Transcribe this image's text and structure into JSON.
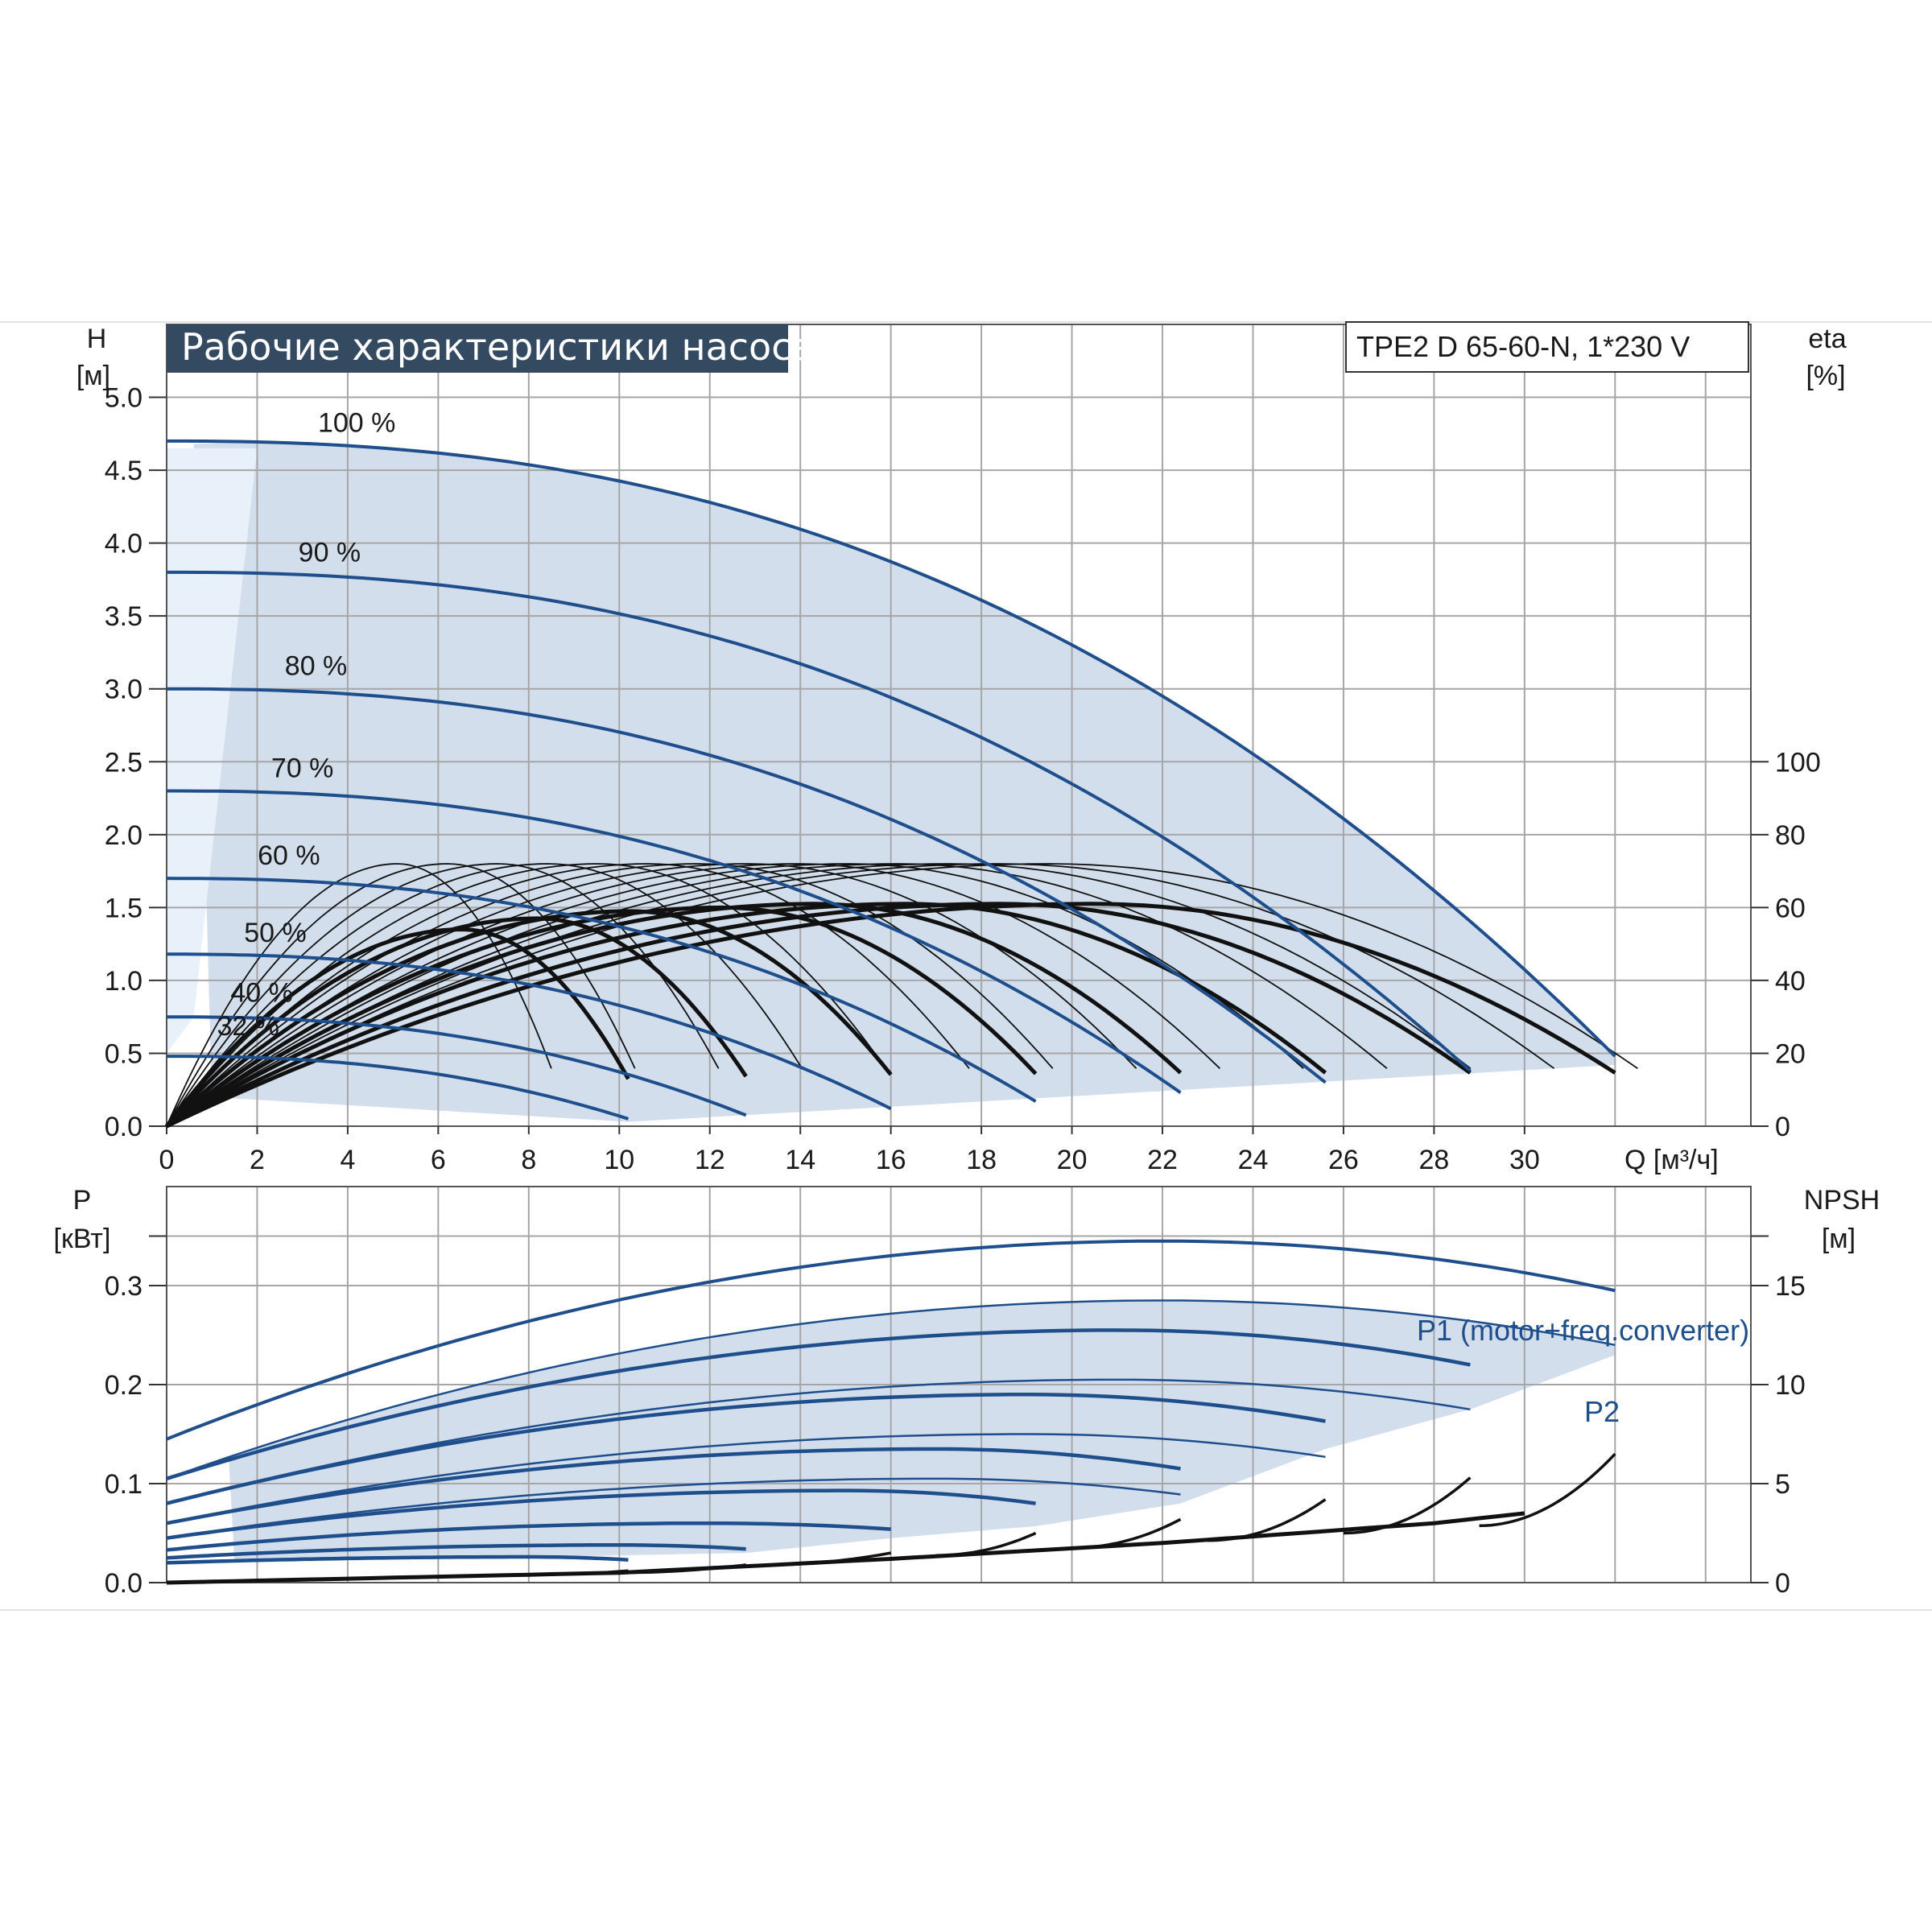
{
  "chart_data": [
    {
      "type": "line",
      "title": "Рабочие характеристики насоса",
      "model": "TPE2 D 65-60-N, 1*230 V",
      "ylabel": "H",
      "ylabel_unit": "[м]",
      "y2label": "eta",
      "y2label_unit": "[%]",
      "xlabel": "Q [м³/ч]",
      "xlim": [
        0,
        35
      ],
      "ylim": [
        0,
        5.5
      ],
      "y2lim": [
        0,
        100
      ],
      "x_ticks": [
        "0",
        "2",
        "4",
        "6",
        "8",
        "10",
        "12",
        "14",
        "16",
        "18",
        "20",
        "22",
        "24",
        "26",
        "28",
        "30"
      ],
      "y_ticks": [
        "0.0",
        "0.5",
        "1.0",
        "1.5",
        "2.0",
        "2.5",
        "3.0",
        "3.5",
        "4.0",
        "4.5",
        "5.0"
      ],
      "y2_ticks": [
        "0",
        "20",
        "40",
        "60",
        "80",
        "100"
      ],
      "grid": true,
      "head_curves": [
        {
          "label": "100 %",
          "shutoff": 4.7,
          "qmax": 32.0,
          "hend": 0.48,
          "label_q": 4.2,
          "label_h": 4.72
        },
        {
          "label": "90 %",
          "shutoff": 3.8,
          "qmax": 28.8,
          "hend": 0.38,
          "label_q": 3.6,
          "label_h": 3.83
        },
        {
          "label": "80 %",
          "shutoff": 3.0,
          "qmax": 25.6,
          "hend": 0.3,
          "label_q": 3.3,
          "label_h": 3.05
        },
        {
          "label": "70 %",
          "shutoff": 2.3,
          "qmax": 22.4,
          "hend": 0.23,
          "label_q": 3.0,
          "label_h": 2.35
        },
        {
          "label": "60 %",
          "shutoff": 1.7,
          "qmax": 19.2,
          "hend": 0.17,
          "label_q": 2.7,
          "label_h": 1.75
        },
        {
          "label": "50 %",
          "shutoff": 1.18,
          "qmax": 16.0,
          "hend": 0.12,
          "label_q": 2.4,
          "label_h": 1.22
        },
        {
          "label": "40 %",
          "shutoff": 0.75,
          "qmax": 12.8,
          "hend": 0.075,
          "label_q": 2.1,
          "label_h": 0.81
        },
        {
          "label": "32 %",
          "shutoff": 0.48,
          "qmax": 10.2,
          "hend": 0.05,
          "label_q": 1.8,
          "label_h": 0.58
        }
      ],
      "efficiency_curves_percent": [
        {
          "qmax": 32.0,
          "peak": 61
        },
        {
          "qmax": 28.8,
          "peak": 61
        },
        {
          "qmax": 25.6,
          "peak": 61
        },
        {
          "qmax": 22.4,
          "peak": 61
        },
        {
          "qmax": 19.2,
          "peak": 60
        },
        {
          "qmax": 16.0,
          "peak": 59
        },
        {
          "qmax": 12.8,
          "peak": 57
        },
        {
          "qmax": 10.2,
          "peak": 54
        }
      ]
    },
    {
      "type": "line",
      "ylabel": "P",
      "ylabel_unit": "[кВт]",
      "y2label": "NPSH",
      "y2label_unit": "[м]",
      "xlim": [
        0,
        35
      ],
      "ylim": [
        0,
        0.4
      ],
      "y2lim": [
        0,
        20
      ],
      "y_ticks": [
        "0.0",
        "0.1",
        "0.2",
        "0.3"
      ],
      "y2_ticks": [
        "0",
        "5",
        "10",
        "15"
      ],
      "grid": true,
      "series_labels": [
        "P1 (motor+freq.converter)",
        "P2"
      ],
      "p1_curves": [
        {
          "start": 0.145,
          "qpeak": 22,
          "peak": 0.345,
          "qmax": 32.0,
          "end": 0.295
        },
        {
          "start": 0.105,
          "qpeak": 21,
          "peak": 0.255,
          "qmax": 28.8,
          "end": 0.22
        },
        {
          "start": 0.08,
          "qpeak": 19,
          "peak": 0.19,
          "qmax": 25.6,
          "end": 0.163
        },
        {
          "start": 0.06,
          "qpeak": 17,
          "peak": 0.135,
          "qmax": 22.4,
          "end": 0.115
        },
        {
          "start": 0.045,
          "qpeak": 15,
          "peak": 0.093,
          "qmax": 19.2,
          "end": 0.08
        },
        {
          "start": 0.033,
          "qpeak": 12,
          "peak": 0.06,
          "qmax": 16.0,
          "end": 0.054
        },
        {
          "start": 0.025,
          "qpeak": 10,
          "peak": 0.038,
          "qmax": 12.8,
          "end": 0.034
        },
        {
          "start": 0.02,
          "qpeak": 8,
          "peak": 0.026,
          "qmax": 10.2,
          "end": 0.023
        }
      ],
      "p2_curves": [
        {
          "start": 0.105,
          "qpeak": 22,
          "peak": 0.285,
          "qmax": 32.0,
          "end": 0.24
        },
        {
          "start": 0.08,
          "qpeak": 21,
          "peak": 0.205,
          "qmax": 28.8,
          "end": 0.175
        },
        {
          "start": 0.06,
          "qpeak": 19,
          "peak": 0.15,
          "qmax": 25.6,
          "end": 0.127
        },
        {
          "start": 0.045,
          "qpeak": 17,
          "peak": 0.105,
          "qmax": 22.4,
          "end": 0.089
        }
      ],
      "npsh_base": [
        [
          0,
          0.0
        ],
        [
          10,
          0.5
        ],
        [
          16,
          1.2
        ],
        [
          22,
          2.0
        ],
        [
          28,
          3.0
        ],
        [
          30,
          3.5
        ]
      ],
      "npsh_tails": [
        {
          "q0": 8.0,
          "q1": 10.2,
          "n1": 0.6
        },
        {
          "q0": 10.0,
          "q1": 12.8,
          "n1": 0.9
        },
        {
          "q0": 13.0,
          "q1": 16.0,
          "n1": 1.5
        },
        {
          "q0": 17.0,
          "q1": 19.2,
          "n1": 2.5
        },
        {
          "q0": 20.0,
          "q1": 22.4,
          "n1": 3.2
        },
        {
          "q0": 23.0,
          "q1": 25.6,
          "n1": 4.2
        },
        {
          "q0": 26.0,
          "q1": 28.8,
          "n1": 5.3
        },
        {
          "q0": 29.0,
          "q1": 32.0,
          "n1": 6.5
        }
      ]
    }
  ],
  "colors": {
    "grid": "#a6a6a6",
    "frame": "#555555",
    "region_fill": "#d2deeb",
    "region_light": "#e8f1f9",
    "head_line": "#1f4e8c",
    "eff_line": "#111111",
    "title_bg": "#334a60"
  }
}
